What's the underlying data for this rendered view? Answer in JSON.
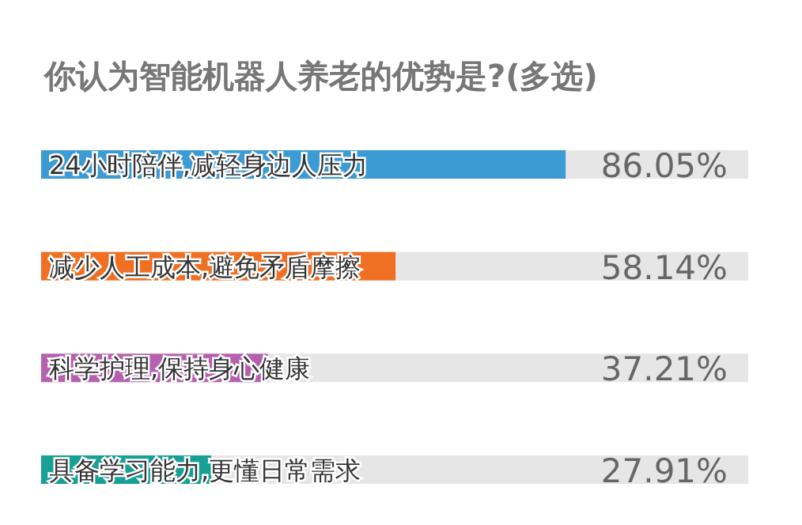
{
  "chart_data": {
    "type": "bar",
    "orientation": "horizontal",
    "title": "你认为智能机器人养老的优势是?(多选)",
    "categories": [
      "24小时陪伴,减轻身边人压力",
      "减少人工成本,避免矛盾摩擦",
      "科学护理,保持身心健康",
      "具备学习能力,更懂日常需求"
    ],
    "values": [
      86.05,
      58.14,
      37.21,
      27.91
    ],
    "value_labels": [
      "86.05%",
      "58.14%",
      "37.21%",
      "27.91%"
    ],
    "colors": [
      "#3d9bd4",
      "#ef7023",
      "#b660b0",
      "#17a094"
    ],
    "xlim": [
      0,
      116
    ]
  }
}
